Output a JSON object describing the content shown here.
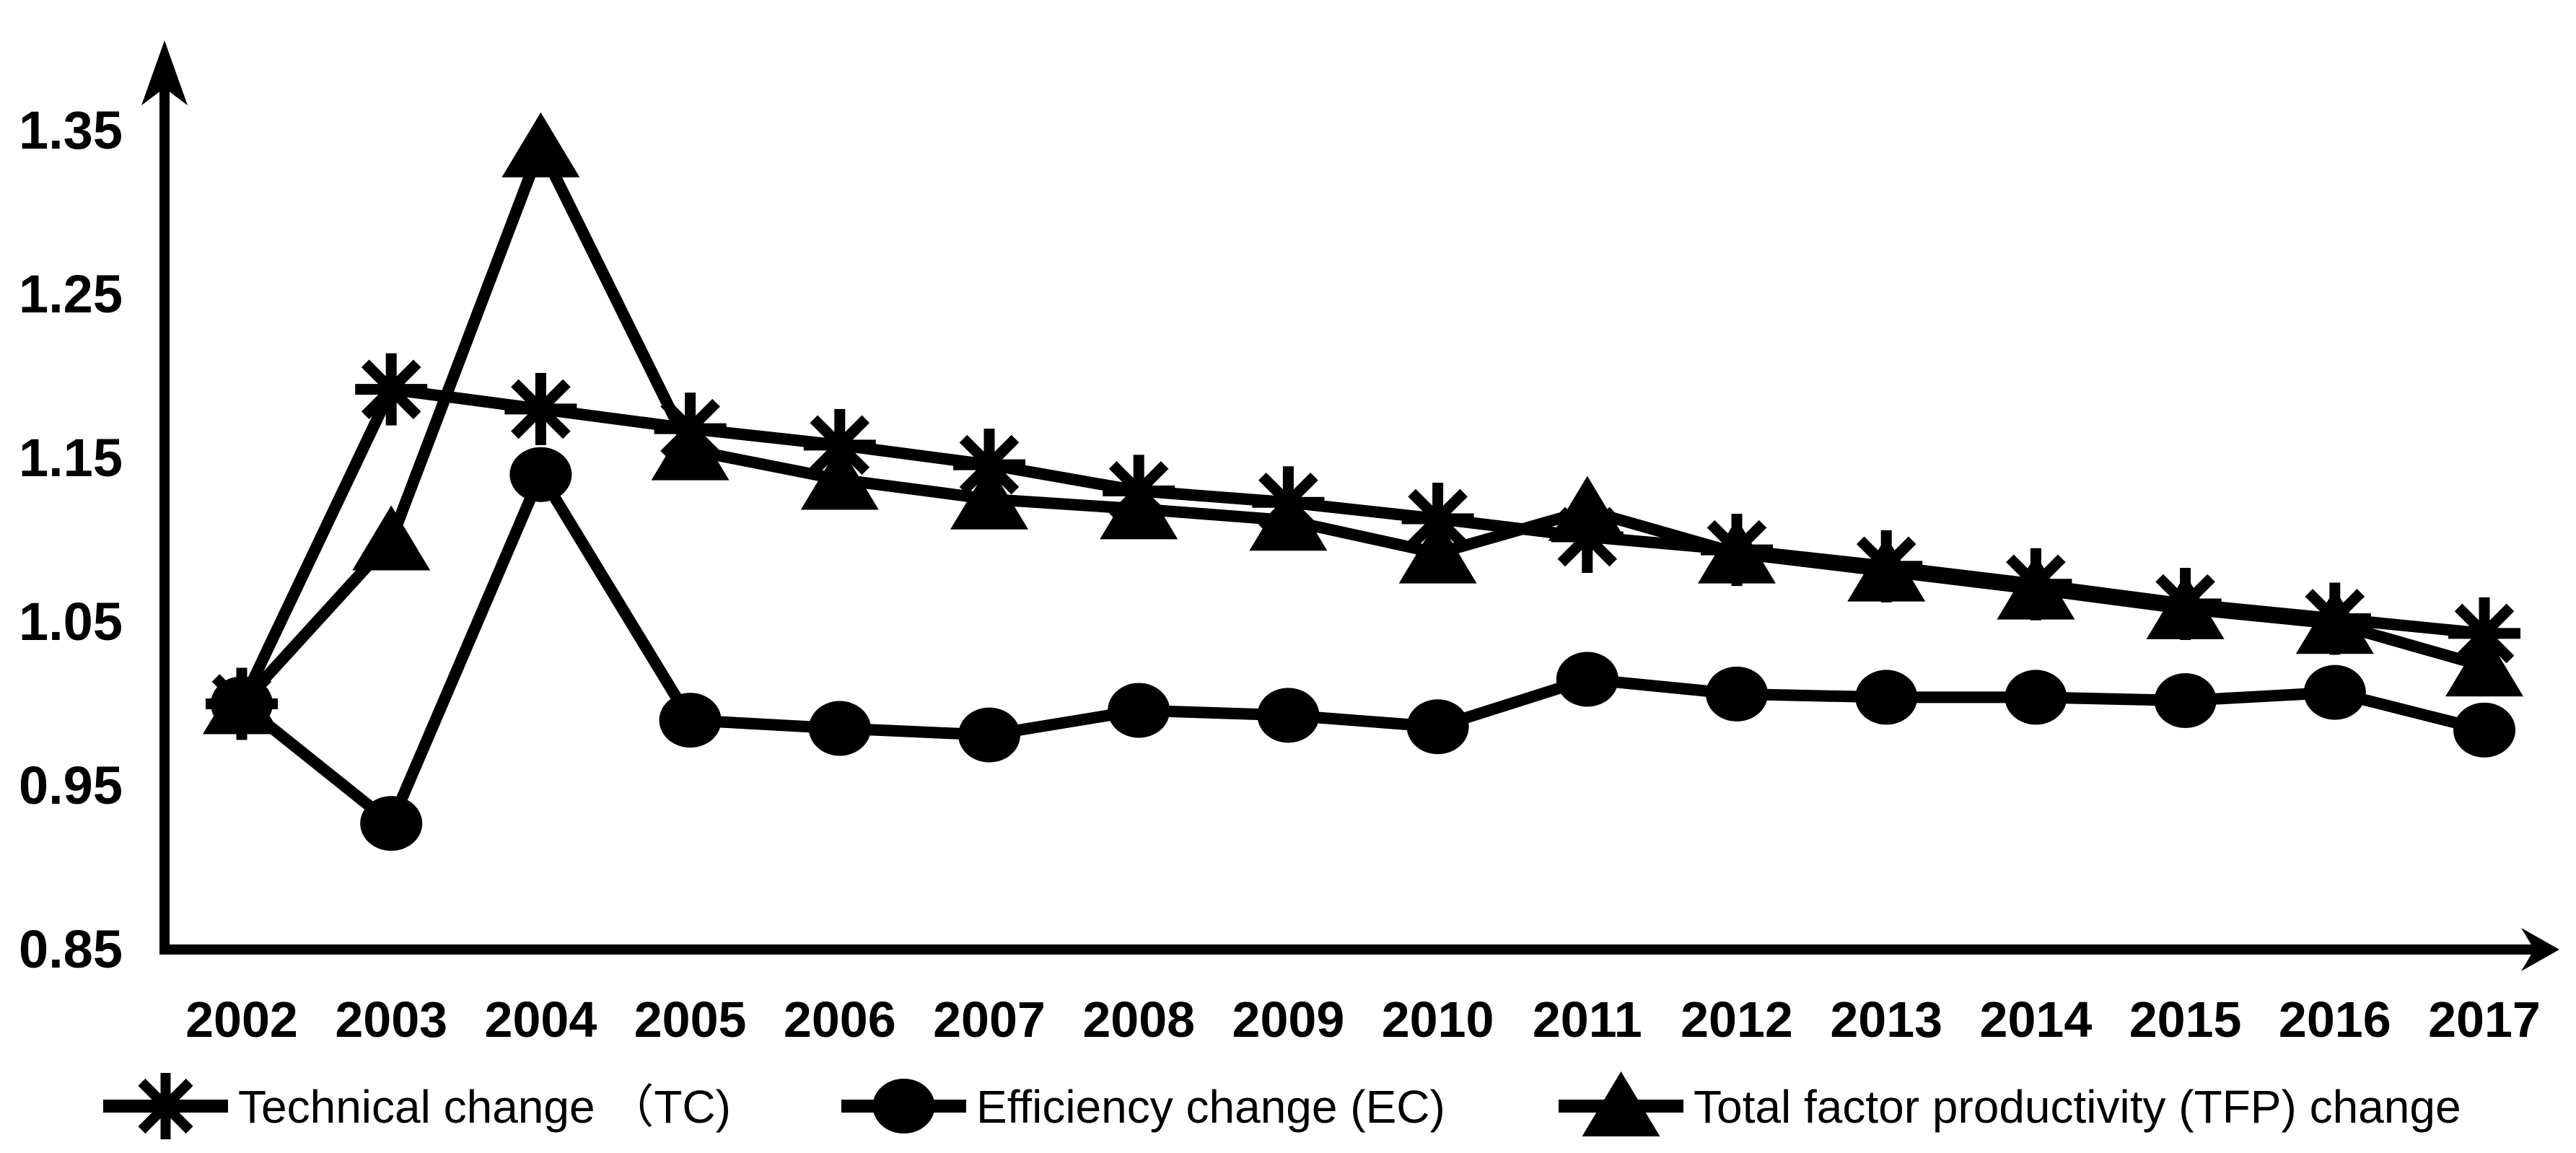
{
  "chart_data": {
    "type": "line",
    "title": "",
    "xlabel": "",
    "ylabel": "",
    "categories": [
      "2002",
      "2003",
      "2004",
      "2005",
      "2006",
      "2007",
      "2008",
      "2009",
      "2010",
      "2011",
      "2012",
      "2013",
      "2014",
      "2015",
      "2016",
      "2017"
    ],
    "series": [
      {
        "name": "Technical change （TC)",
        "marker": "asterisk",
        "values": [
          1.0,
          1.192,
          1.18,
          1.168,
          1.158,
          1.146,
          1.13,
          1.123,
          1.113,
          1.102,
          1.094,
          1.084,
          1.073,
          1.061,
          1.052,
          1.043
        ]
      },
      {
        "name": "Efficiency change (EC)",
        "marker": "circle",
        "values": [
          1.0,
          0.927,
          1.14,
          0.99,
          0.985,
          0.981,
          0.996,
          0.993,
          0.986,
          1.015,
          1.006,
          1.004,
          1.004,
          1.002,
          1.007,
          0.984
        ]
      },
      {
        "name": "Total factor productivity (TFP) change",
        "marker": "triangle",
        "values": [
          1.0,
          1.1,
          1.34,
          1.155,
          1.137,
          1.125,
          1.119,
          1.112,
          1.092,
          1.118,
          1.092,
          1.081,
          1.07,
          1.058,
          1.049,
          1.023
        ]
      }
    ],
    "y_ticks": [
      0.85,
      0.95,
      1.05,
      1.15,
      1.25,
      1.35
    ],
    "ylim": [
      0.85,
      1.385
    ],
    "grid": false,
    "legend_position": "bottom",
    "series_color": "#000000",
    "background_color": "#ffffff"
  }
}
